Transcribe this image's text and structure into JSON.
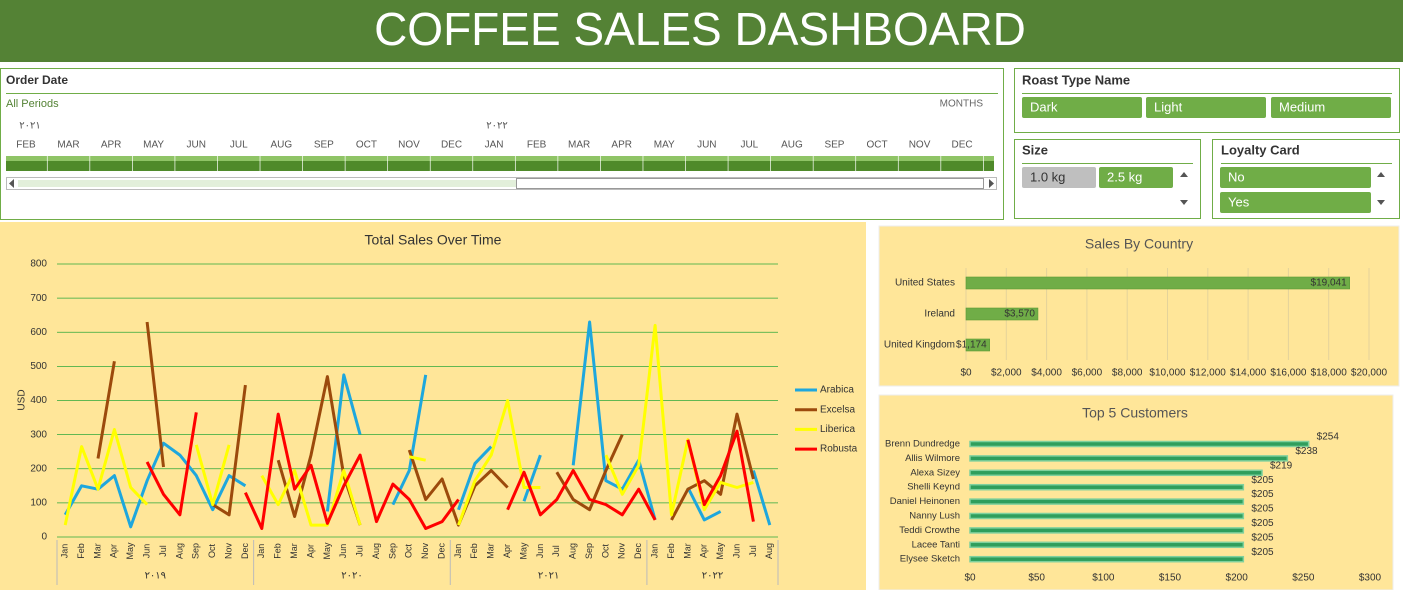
{
  "header": {
    "title": "COFFEE SALES DASHBOARD"
  },
  "timeline": {
    "title": "Order Date",
    "period": "All Periods",
    "level": "MONTHS",
    "years": [
      "٢٠٢١",
      "٢٠٢٢"
    ],
    "months": [
      "FEB",
      "MAR",
      "APR",
      "MAY",
      "JUN",
      "JUL",
      "AUG",
      "SEP",
      "OCT",
      "NOV",
      "DEC",
      "JAN",
      "FEB",
      "MAR",
      "APR",
      "MAY",
      "JUN",
      "JUL",
      "AUG",
      "SEP",
      "OCT",
      "NOV",
      "DEC"
    ]
  },
  "slicers": [
    {
      "title": "Roast Type Name",
      "items": [
        "Dark",
        "Light",
        "Medium"
      ]
    },
    {
      "title": "Size",
      "items": [
        "1.0 kg",
        "2.5 kg"
      ]
    },
    {
      "title": "Loyalty Card",
      "items": [
        "No",
        "Yes"
      ]
    }
  ],
  "chart_data": [
    {
      "type": "line",
      "title": "Total Sales Over Time",
      "y_label": "USD",
      "categories": [
        "Jan",
        "Feb",
        "Mar",
        "Apr",
        "May",
        "Jun",
        "Jul",
        "Aug",
        "Sep",
        "Oct",
        "Nov",
        "Dec",
        "Jan",
        "Feb",
        "Mar",
        "Apr",
        "May",
        "Jun",
        "Jul",
        "Aug",
        "Sep",
        "Oct",
        "Nov",
        "Dec",
        "Jan",
        "Feb",
        "Mar",
        "Apr",
        "May",
        "Jun",
        "Jul",
        "Aug",
        "Sep",
        "Oct",
        "Nov",
        "Dec",
        "Jan",
        "Feb",
        "Mar",
        "Apr",
        "May",
        "Jun",
        "Jul",
        "Aug"
      ],
      "year_labels": [
        "٢٠١٩",
        "٢٠٢٠",
        "٢٠٢١",
        "٢٠٢٢"
      ],
      "ylim": [
        0,
        800
      ],
      "yticks": [
        0,
        100,
        200,
        300,
        400,
        500,
        600,
        700,
        800
      ],
      "grid": true,
      "legend": "right",
      "series": [
        {
          "name": "Arabica",
          "color": "#1ea7dd",
          "values": [
            65,
            150,
            140,
            180,
            30,
            165,
            275,
            240,
            180,
            80,
            180,
            150,
            null,
            null,
            null,
            null,
            75,
            475,
            300,
            null,
            95,
            195,
            475,
            null,
            80,
            215,
            265,
            null,
            105,
            240,
            null,
            210,
            630,
            165,
            140,
            225,
            50,
            null,
            145,
            50,
            75,
            null,
            195,
            35
          ]
        },
        {
          "name": "Excelsa",
          "color": "#9c4a0c",
          "values": [
            null,
            null,
            230,
            515,
            null,
            630,
            205,
            null,
            null,
            95,
            65,
            445,
            null,
            225,
            60,
            240,
            470,
            180,
            35,
            null,
            null,
            255,
            110,
            170,
            35,
            150,
            195,
            145,
            null,
            null,
            190,
            110,
            80,
            195,
            300,
            null,
            null,
            50,
            140,
            165,
            125,
            360,
            170,
            null
          ]
        },
        {
          "name": "Liberica",
          "color": "#ffff00",
          "values": [
            35,
            265,
            140,
            315,
            145,
            95,
            null,
            null,
            270,
            95,
            270,
            null,
            180,
            95,
            195,
            35,
            35,
            195,
            35,
            null,
            null,
            235,
            225,
            null,
            35,
            165,
            240,
            400,
            145,
            145,
            null,
            null,
            null,
            240,
            125,
            210,
            620,
            65,
            285,
            80,
            160,
            145,
            160,
            null
          ]
        },
        {
          "name": "Robusta",
          "color": "#ff0000",
          "values": [
            null,
            null,
            null,
            null,
            null,
            220,
            125,
            65,
            365,
            null,
            null,
            130,
            25,
            360,
            140,
            210,
            40,
            150,
            240,
            45,
            155,
            110,
            25,
            45,
            110,
            null,
            null,
            80,
            190,
            65,
            110,
            195,
            110,
            95,
            65,
            140,
            50,
            null,
            285,
            95,
            180,
            310,
            45,
            null
          ]
        }
      ]
    },
    {
      "type": "hbar",
      "title": "Sales By Country",
      "color": "#70ad47",
      "categories": [
        "United States",
        "Ireland",
        "United Kingdom"
      ],
      "values": [
        19041,
        3570,
        1174
      ],
      "value_labels": [
        "$19,041",
        "$3,570",
        "$1,174"
      ],
      "xlim": [
        0,
        20000
      ],
      "grid": true,
      "label_position": "inside",
      "xticks": [
        {
          "value": 0,
          "label": "$0"
        },
        {
          "value": 2000,
          "label": "$2,000"
        },
        {
          "value": 4000,
          "label": "$4,000"
        },
        {
          "value": 6000,
          "label": "$6,000"
        },
        {
          "value": 8000,
          "label": "$8,000"
        },
        {
          "value": 10000,
          "label": "$10,000"
        },
        {
          "value": 12000,
          "label": "$12,000"
        },
        {
          "value": 14000,
          "label": "$14,000"
        },
        {
          "value": 16000,
          "label": "$16,000"
        },
        {
          "value": 18000,
          "label": "$18,000"
        },
        {
          "value": 20000,
          "label": "$20,000"
        }
      ]
    },
    {
      "type": "hbar",
      "title": "Top 5 Customers",
      "color": "#2f9e5c",
      "categories": [
        "Brenn Dundredge",
        "Allis Wilmore",
        "Alexa Sizey",
        "Shelli Keynd",
        "Daniel Heinonen",
        "Nanny Lush",
        "Teddi Crowthe",
        "Lacee Tanti",
        "Elysee Sketch"
      ],
      "values": [
        254,
        238,
        219,
        205,
        205,
        205,
        205,
        205,
        205
      ],
      "value_labels": [
        "$254",
        "$238",
        "$219",
        "$205",
        "$205",
        "$205",
        "$205",
        "$205",
        "$205"
      ],
      "xlim": [
        0,
        300
      ],
      "grid": false,
      "label_position": "outside",
      "xticks": [
        {
          "value": 0,
          "label": "$0"
        },
        {
          "value": 50,
          "label": "$50"
        },
        {
          "value": 100,
          "label": "$100"
        },
        {
          "value": 150,
          "label": "$150"
        },
        {
          "value": 200,
          "label": "$200"
        },
        {
          "value": 250,
          "label": "$250"
        },
        {
          "value": 300,
          "label": "$300"
        }
      ]
    }
  ]
}
